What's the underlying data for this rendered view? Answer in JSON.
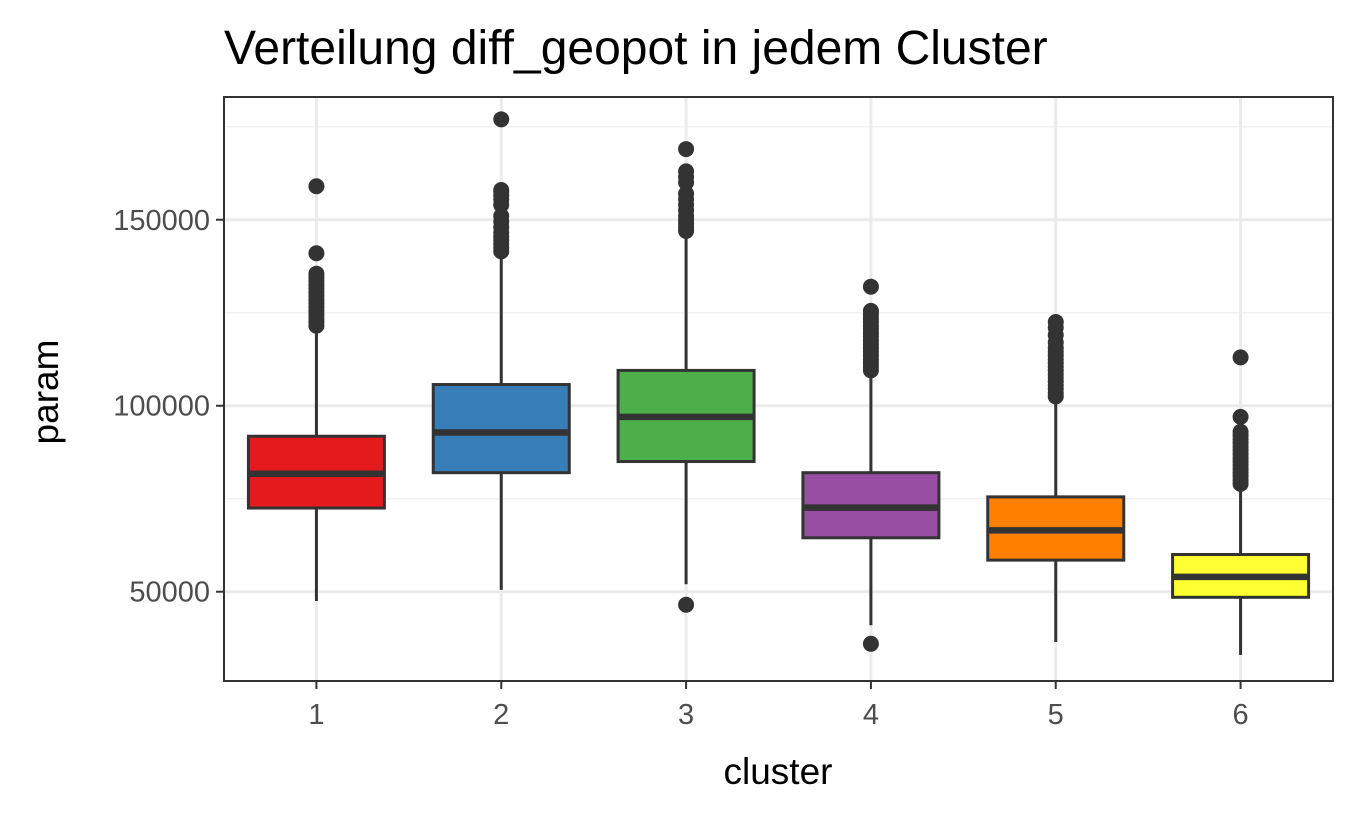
{
  "chart_data": {
    "type": "box",
    "title": "Verteilung diff_geopot in jedem Cluster",
    "xlabel": "cluster",
    "ylabel": "param",
    "ylim": [
      26000,
      183000
    ],
    "y_ticks": [
      50000,
      100000,
      150000
    ],
    "y_tick_labels": [
      "50000",
      "100000",
      "150000"
    ],
    "grid": true,
    "legend": "none",
    "categories": [
      "1",
      "2",
      "3",
      "4",
      "5",
      "6"
    ],
    "series": [
      {
        "category": "1",
        "color": "#e41a1c",
        "whisker_low": 47500,
        "q1": 72500,
        "median": 81700,
        "q3": 91800,
        "whisker_high": 120500,
        "outliers": [
          121500,
          122500,
          123500,
          124500,
          125500,
          126500,
          127500,
          128500,
          129500,
          130500,
          131500,
          132500,
          133500,
          134500,
          135500,
          141000,
          159000
        ]
      },
      {
        "category": "2",
        "color": "#377eb8",
        "whisker_low": 50500,
        "q1": 82000,
        "median": 92800,
        "q3": 105700,
        "whisker_high": 140500,
        "outliers": [
          141500,
          142500,
          143500,
          144500,
          145500,
          146500,
          148000,
          149500,
          151000,
          154000,
          155500,
          156500,
          157500,
          158000,
          177000
        ]
      },
      {
        "category": "3",
        "color": "#4daf4a",
        "whisker_low": 52000,
        "q1": 85000,
        "median": 97000,
        "q3": 109500,
        "whisker_high": 146000,
        "outliers": [
          46500,
          147000,
          148000,
          149000,
          150000,
          151000,
          152500,
          154000,
          155500,
          157000,
          160000,
          161500,
          163000,
          169000
        ]
      },
      {
        "category": "4",
        "color": "#984ea3",
        "whisker_low": 41000,
        "q1": 64500,
        "median": 72600,
        "q3": 82000,
        "whisker_high": 108500,
        "outliers": [
          36000,
          109500,
          110500,
          111500,
          112500,
          113500,
          114500,
          115500,
          116500,
          117500,
          118500,
          119500,
          120500,
          121500,
          122500,
          123500,
          124500,
          125500,
          132000
        ]
      },
      {
        "category": "5",
        "color": "#ff7f00",
        "whisker_low": 36500,
        "q1": 58500,
        "median": 66500,
        "q3": 75500,
        "whisker_high": 101500,
        "outliers": [
          102500,
          103500,
          104500,
          105500,
          106500,
          107500,
          108500,
          109500,
          110500,
          111500,
          112500,
          113500,
          114500,
          115500,
          117000,
          119000,
          121000,
          122500
        ]
      },
      {
        "category": "6",
        "color": "#ffff33",
        "whisker_low": 33000,
        "q1": 48500,
        "median": 54000,
        "q3": 60000,
        "whisker_high": 78000,
        "outliers": [
          79000,
          80000,
          81000,
          82000,
          83000,
          84000,
          85000,
          86000,
          87000,
          88000,
          89000,
          90000,
          91000,
          92000,
          93000,
          97000,
          113000
        ]
      }
    ]
  }
}
